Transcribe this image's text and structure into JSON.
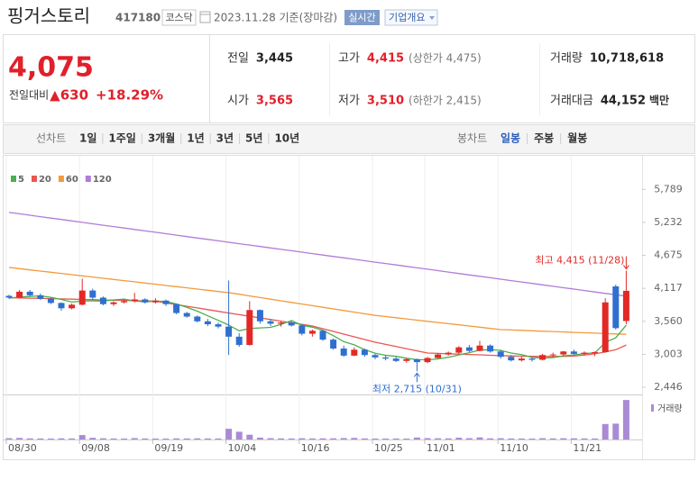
{
  "header": {
    "name": "핑거스토리",
    "code": "417180",
    "market": "코스닥",
    "date": "2023.11.28 기준(장마감)",
    "realtime": "실시간",
    "company": "기업개요"
  },
  "quote": {
    "price": "4,075",
    "change_label": "전일대비",
    "change": "▲630",
    "change_rate": "+18.29%",
    "fields": [
      {
        "label": "전일",
        "value": "3,445",
        "color": "#222222"
      },
      {
        "label": "고가",
        "value": "4,415",
        "color": "#e0202a",
        "extra": "(상한가 4,475)"
      },
      {
        "label": "거래량",
        "value": "10,718,618",
        "color": "#222222"
      },
      {
        "label": "시가",
        "value": "3,565",
        "color": "#e0202a"
      },
      {
        "label": "저가",
        "value": "3,510",
        "color": "#e0202a",
        "extra": "(하한가 2,415)"
      },
      {
        "label": "거래대금",
        "value": "44,152",
        "color": "#222222",
        "unit": "백만"
      }
    ]
  },
  "toolbar": {
    "line_label": "선차트",
    "line_periods": [
      "1일",
      "1주일",
      "3개월",
      "1년",
      "3년",
      "5년",
      "10년"
    ],
    "candle_label": "봉차트",
    "candle_periods": [
      "일봉",
      "주봉",
      "월봉"
    ],
    "active_candle": 0
  },
  "chart_data": {
    "type": "candlestick",
    "categories": [
      "08/30",
      null,
      null,
      null,
      null,
      null,
      null,
      "09/08",
      null,
      null,
      null,
      null,
      null,
      null,
      "09/19",
      null,
      null,
      null,
      null,
      null,
      null,
      "10/04",
      null,
      null,
      null,
      null,
      null,
      null,
      "10/16",
      null,
      null,
      null,
      null,
      null,
      null,
      "10/25",
      null,
      null,
      null,
      null,
      "11/01",
      null,
      null,
      null,
      null,
      null,
      null,
      "11/10",
      null,
      null,
      null,
      null,
      null,
      null,
      "11/21",
      null,
      null,
      null,
      null,
      null
    ],
    "open": [
      3990,
      3960,
      4060,
      4000,
      3940,
      3870,
      3780,
      3840,
      4080,
      3960,
      3850,
      3880,
      3900,
      3930,
      3880,
      3910,
      3850,
      3700,
      3640,
      3560,
      3510,
      3470,
      3300,
      3160,
      3750,
      3560,
      3520,
      3540,
      3490,
      3350,
      3400,
      3250,
      3100,
      2980,
      3080,
      2990,
      2950,
      2930,
      2890,
      2920,
      2870,
      2940,
      3000,
      3030,
      3120,
      3060,
      3150,
      3050,
      2960,
      2900,
      2930,
      2910,
      2990,
      3000,
      3050,
      3010,
      3030,
      3040,
      4150,
      3565
    ],
    "high": [
      4010,
      4090,
      4090,
      4030,
      3960,
      3880,
      3860,
      4280,
      4110,
      3980,
      3900,
      3930,
      4040,
      3950,
      3950,
      3930,
      3860,
      3720,
      3660,
      3600,
      3540,
      4250,
      3360,
      3900,
      3760,
      3600,
      3560,
      3560,
      3510,
      3420,
      3420,
      3270,
      3150,
      3120,
      3100,
      3010,
      2990,
      2960,
      2940,
      2930,
      2960,
      3020,
      3050,
      3140,
      3160,
      3230,
      3170,
      3080,
      2990,
      2960,
      2950,
      3010,
      3030,
      3060,
      3080,
      3050,
      3050,
      3950,
      4180,
      4415
    ],
    "low": [
      3940,
      3950,
      3980,
      3920,
      3850,
      3740,
      3760,
      3830,
      3930,
      3830,
      3820,
      3860,
      3880,
      3860,
      3860,
      3820,
      3680,
      3620,
      3540,
      3480,
      3440,
      2990,
      3130,
      3150,
      3520,
      3480,
      3470,
      3470,
      3320,
      3300,
      3230,
      3080,
      2960,
      2970,
      2960,
      2920,
      2900,
      2870,
      2860,
      2715,
      2850,
      2930,
      2980,
      3010,
      3040,
      3050,
      3030,
      2930,
      2880,
      2880,
      2880,
      2900,
      2950,
      2970,
      2990,
      2980,
      2970,
      3030,
      3420,
      3510
    ],
    "close": [
      3960,
      4060,
      4000,
      3940,
      3870,
      3780,
      3840,
      4080,
      3960,
      3850,
      3880,
      3900,
      3930,
      3880,
      3910,
      3850,
      3700,
      3640,
      3560,
      3510,
      3470,
      3300,
      3160,
      3750,
      3560,
      3520,
      3540,
      3490,
      3350,
      3400,
      3250,
      3100,
      2980,
      3080,
      2990,
      2950,
      2930,
      2890,
      2920,
      2870,
      2940,
      3000,
      3030,
      3120,
      3060,
      3150,
      3050,
      2960,
      2900,
      2930,
      2910,
      2990,
      3000,
      3050,
      3010,
      3030,
      3040,
      3880,
      3445,
      4075
    ],
    "up_color": "#e22926",
    "down_color": "#2f6fd0",
    "series": [
      {
        "name": "5",
        "color": "#4caf50",
        "values": [
          3950,
          3970,
          3980,
          3990,
          3966,
          3930,
          3886,
          3902,
          3906,
          3902,
          3922,
          3934,
          3904,
          3888,
          3900,
          3894,
          3854,
          3796,
          3732,
          3652,
          3576,
          3496,
          3400,
          3438,
          3448,
          3458,
          3506,
          3572,
          3492,
          3460,
          3406,
          3318,
          3216,
          3162,
          3080,
          3020,
          2986,
          2968,
          2936,
          2912,
          2910,
          2924,
          2952,
          2992,
          3030,
          3072,
          3082,
          3068,
          3024,
          2998,
          2950,
          2938,
          2946,
          2976,
          2992,
          3016,
          3026,
          3202,
          3281,
          3494
        ]
      },
      {
        "name": "20",
        "color": "#e8574f",
        "values": [
          3960,
          3956,
          3951,
          3947,
          3943,
          3939,
          3934,
          3930,
          3926,
          3921,
          3917,
          3913,
          3909,
          3904,
          3900,
          3871,
          3843,
          3814,
          3786,
          3757,
          3729,
          3700,
          3673,
          3645,
          3618,
          3590,
          3563,
          3535,
          3508,
          3480,
          3435,
          3389,
          3344,
          3298,
          3253,
          3207,
          3170,
          3134,
          3097,
          3061,
          3024,
          3018,
          3011,
          3005,
          2999,
          2993,
          2986,
          2980,
          2975,
          2970,
          2968,
          2966,
          2966,
          2968,
          2972,
          2990,
          3010,
          3040,
          3080,
          3160
        ]
      },
      {
        "name": "60",
        "color": "#f39a3c",
        "values": [
          4470,
          4450,
          4429,
          4409,
          4389,
          4369,
          4348,
          4328,
          4308,
          4287,
          4267,
          4247,
          4227,
          4206,
          4186,
          4166,
          4145,
          4125,
          4105,
          4085,
          4064,
          4044,
          4017,
          3989,
          3962,
          3934,
          3907,
          3879,
          3852,
          3824,
          3797,
          3770,
          3742,
          3715,
          3687,
          3660,
          3640,
          3620,
          3600,
          3580,
          3560,
          3540,
          3520,
          3500,
          3480,
          3460,
          3440,
          3420,
          3413,
          3407,
          3400,
          3393,
          3387,
          3380,
          3373,
          3367,
          3360,
          3353,
          3347,
          3340
        ]
      },
      {
        "name": "120",
        "color": "#b07cd8",
        "values": [
          5400,
          5376,
          5352,
          5328,
          5304,
          5280,
          5256,
          5232,
          5208,
          5184,
          5160,
          5136,
          5112,
          5088,
          5064,
          5040,
          5016,
          4992,
          4968,
          4944,
          4920,
          4896,
          4872,
          4848,
          4824,
          4800,
          4776,
          4752,
          4728,
          4704,
          4680,
          4656,
          4632,
          4608,
          4584,
          4560,
          4536,
          4512,
          4488,
          4464,
          4440,
          4416,
          4392,
          4368,
          4344,
          4320,
          4296,
          4272,
          4248,
          4224,
          4200,
          4176,
          4152,
          4128,
          4104,
          4080,
          4056,
          4032,
          4008,
          3984
        ]
      }
    ],
    "ylim": [
      2324,
      6174
    ],
    "yticks": [
      {
        "value": 5789,
        "label": "5,789"
      },
      {
        "value": 5232,
        "label": "5,232"
      },
      {
        "value": 4675,
        "label": "4,675"
      },
      {
        "value": 4117,
        "label": "4,117"
      },
      {
        "value": 3560,
        "label": "3,560"
      },
      {
        "value": 3003,
        "label": "3,003"
      },
      {
        "value": 2446,
        "label": "2,446"
      }
    ],
    "xgrid": true,
    "volume": {
      "name": "거래량",
      "color": "#a98bd4",
      "ylim": [
        0,
        11000000
      ],
      "values": [
        350000,
        420000,
        300000,
        280000,
        260000,
        310000,
        290000,
        1200000,
        450000,
        320000,
        280000,
        260000,
        380000,
        270000,
        250000,
        240000,
        300000,
        280000,
        310000,
        290000,
        270000,
        2900000,
        2100000,
        1300000,
        500000,
        350000,
        300000,
        280000,
        330000,
        290000,
        300000,
        320000,
        380000,
        420000,
        290000,
        260000,
        250000,
        270000,
        240000,
        520000,
        360000,
        330000,
        300000,
        480000,
        350000,
        560000,
        310000,
        340000,
        280000,
        260000,
        240000,
        350000,
        300000,
        330000,
        320000,
        290000,
        270000,
        4200000,
        4300000,
        10718618
      ]
    },
    "annotations": [
      {
        "text": "최고 4,415 (11/28)",
        "value": 4415,
        "anchor": "high",
        "color": "#e22926"
      },
      {
        "text": "최저 2,715 (10/31)",
        "value": 2715,
        "anchor": "low",
        "color": "#2f6fd0"
      }
    ]
  }
}
